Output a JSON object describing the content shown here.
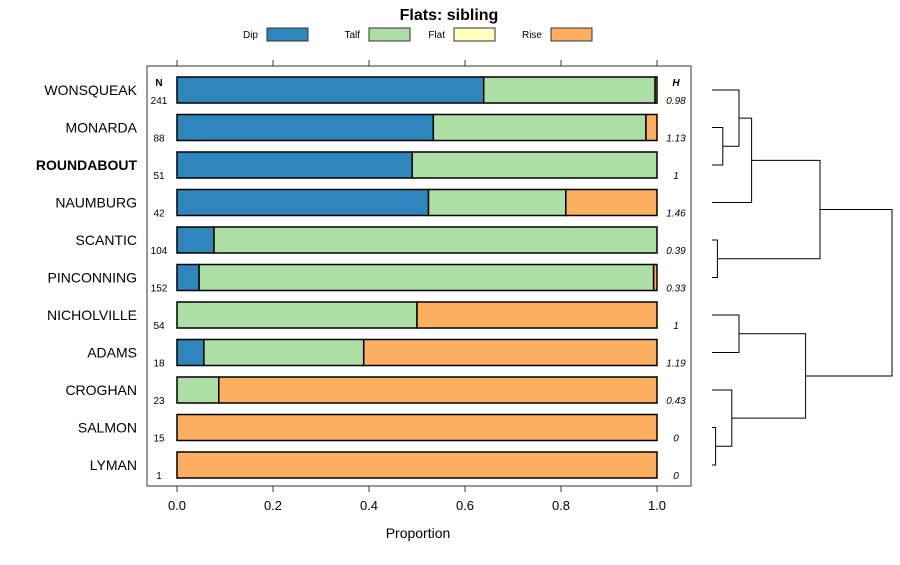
{
  "chart_data": {
    "type": "bar",
    "stacked": true,
    "orientation": "horizontal",
    "title": "Flats: sibling",
    "xlabel": "Proportion",
    "xlim": [
      0,
      1
    ],
    "xticks": [
      "0.0",
      "0.2",
      "0.4",
      "0.6",
      "0.8",
      "1.0"
    ],
    "legend_position": "top",
    "n_header": "N",
    "h_header": "H",
    "highlighted": "ROUNDABOUT",
    "series": [
      {
        "name": "Dip",
        "color": "#2e86bc"
      },
      {
        "name": "Talf",
        "color": "#addea5"
      },
      {
        "name": "Flat",
        "color": "#ffffbf"
      },
      {
        "name": "Rise",
        "color": "#fdae61"
      }
    ],
    "categories": [
      "WONSQUEAK",
      "MONARDA",
      "ROUNDABOUT",
      "NAUMBURG",
      "SCANTIC",
      "PINCONNING",
      "NICHOLVILLE",
      "ADAMS",
      "CROGHAN",
      "SALMON",
      "LYMAN"
    ],
    "N": [
      "241",
      "88",
      "51",
      "42",
      "104",
      "152",
      "54",
      "18",
      "23",
      "15",
      "1"
    ],
    "H": [
      "0.98",
      "1.13",
      "1",
      "1.46",
      "0.39",
      "0.33",
      "1",
      "1.19",
      "0.43",
      "0",
      "0"
    ],
    "values": [
      [
        0.639,
        0.357,
        0,
        0.004
      ],
      [
        0.534,
        0.443,
        0,
        0.023
      ],
      [
        0.49,
        0.51,
        0,
        0
      ],
      [
        0.524,
        0.286,
        0,
        0.19
      ],
      [
        0.077,
        0.923,
        0,
        0
      ],
      [
        0.046,
        0.947,
        0,
        0.007
      ],
      [
        0,
        0.5,
        0,
        0.5
      ],
      [
        0.056,
        0.333,
        0,
        0.611
      ],
      [
        0,
        0.087,
        0,
        0.913
      ],
      [
        0,
        0,
        0,
        1
      ],
      [
        0,
        0,
        0,
        1
      ]
    ],
    "dendrogram": {
      "merges": [
        {
          "id": "a",
          "left": 1,
          "right": 2,
          "height": 0.06
        },
        {
          "id": "b",
          "left": 0,
          "right": "a",
          "height": 0.15
        },
        {
          "id": "c",
          "left": "b",
          "right": 3,
          "height": 0.22
        },
        {
          "id": "d",
          "left": 4,
          "right": 5,
          "height": 0.03
        },
        {
          "id": "e",
          "left": "c",
          "right": "d",
          "height": 0.6
        },
        {
          "id": "f",
          "left": 6,
          "right": 7,
          "height": 0.15
        },
        {
          "id": "g",
          "left": 9,
          "right": 10,
          "height": 0.02
        },
        {
          "id": "h",
          "left": 8,
          "right": "g",
          "height": 0.11
        },
        {
          "id": "i",
          "left": "f",
          "right": "h",
          "height": 0.52
        },
        {
          "id": "j",
          "left": "e",
          "right": "i",
          "height": 1.0
        }
      ]
    }
  }
}
